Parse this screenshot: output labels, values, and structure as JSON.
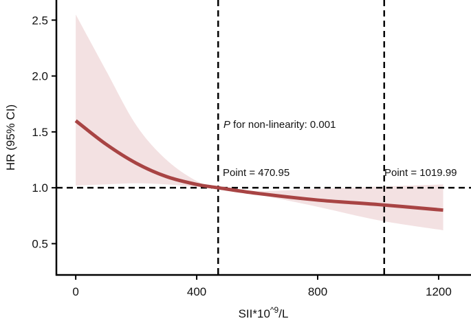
{
  "chart_data": {
    "type": "line",
    "title": "",
    "xlabel": "SII*10^9/L",
    "xlabel_base": "SII*10",
    "xlabel_sup": "^9",
    "xlabel_tail": "/L",
    "ylabel": "HR (95% CI)",
    "xlim": [
      -64,
      1307
    ],
    "ylim": [
      0.22,
      2.68
    ],
    "xticks": [
      0,
      400,
      800,
      1200
    ],
    "xtick_labels": [
      "0",
      "400",
      "800",
      "1200"
    ],
    "yticks": [
      0.5,
      1.0,
      1.5,
      2.0,
      2.5
    ],
    "ytick_labels": [
      "0.5",
      "1.0",
      "1.5",
      "2.0",
      "2.5"
    ],
    "grid": false,
    "series": [
      {
        "x": [
          0,
          100,
          200,
          300,
          400,
          470.95,
          600,
          800,
          1000,
          1215
        ],
        "y": [
          1.6,
          1.39,
          1.22,
          1.1,
          1.03,
          1.0,
          0.95,
          0.89,
          0.85,
          0.8
        ],
        "lower": [
          1.02,
          1.03,
          1.04,
          1.03,
          1.01,
          1.0,
          0.94,
          0.83,
          0.71,
          0.62
        ],
        "upper": [
          2.55,
          2.05,
          1.56,
          1.25,
          1.06,
          1.0,
          0.97,
          0.99,
          1.01,
          1.03
        ],
        "color": "#a84444",
        "band_color": "#f3e1e2"
      }
    ],
    "reference_lines": {
      "horizontal": 1.0,
      "vertical": [
        470.95,
        1019.99
      ]
    },
    "annotations": {
      "p_italic": "P",
      "p_text": " for non-linearity: 0.001",
      "point1": "Point = 470.95",
      "point2": "Point = 1019.99"
    }
  }
}
